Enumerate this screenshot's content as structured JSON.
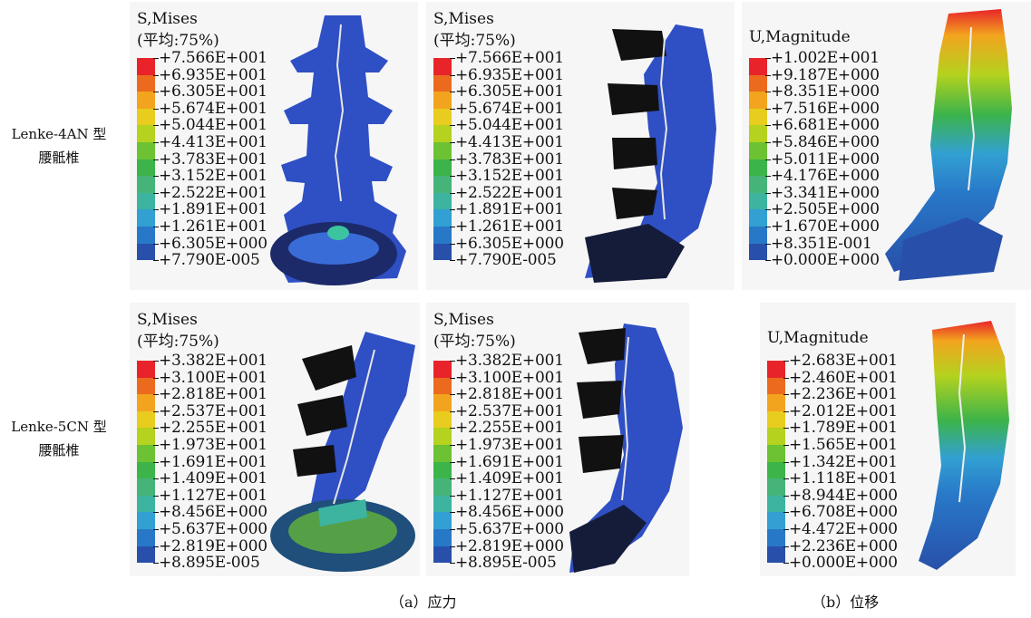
{
  "row_labels": [
    {
      "line1": "Lenke-4AN 型",
      "line2": "腰骶椎"
    },
    {
      "line1": "Lenke-5CN 型",
      "line2": "腰骶椎"
    }
  ],
  "panels": [
    {
      "title1": "S,Mises",
      "title2": "(平均:75%)",
      "ticks": [
        "+7.566E+001",
        "+6.935E+001",
        "+6.305E+001",
        "+5.674E+001",
        "+5.044E+001",
        "+4.413E+001",
        "+3.783E+001",
        "+3.152E+001",
        "+2.522E+001",
        "+1.891E+001",
        "+1.261E+001",
        "+6.305E+000",
        "+7.790E-005"
      ]
    },
    {
      "title1": "S,Mises",
      "title2": "(平均:75%)",
      "ticks": [
        "+7.566E+001",
        "+6.935E+001",
        "+6.305E+001",
        "+5.674E+001",
        "+5.044E+001",
        "+4.413E+001",
        "+3.783E+001",
        "+3.152E+001",
        "+2.522E+001",
        "+1.891E+001",
        "+1.261E+001",
        "+6.305E+000",
        "+7.790E-005"
      ]
    },
    {
      "title1": "U,Magnitude",
      "title2": "",
      "ticks": [
        "+1.002E+001",
        "+9.187E+000",
        "+8.351E+000",
        "+7.516E+000",
        "+6.681E+000",
        "+5.846E+000",
        "+5.011E+000",
        "+4.176E+000",
        "+3.341E+000",
        "+2.505E+000",
        "+1.670E+000",
        "+8.351E-001",
        "+0.000E+000"
      ]
    },
    {
      "title1": "S,Mises",
      "title2": "(平均:75%)",
      "ticks": [
        "+3.382E+001",
        "+3.100E+001",
        "+2.818E+001",
        "+2.537E+001",
        "+2.255E+001",
        "+1.973E+001",
        "+1.691E+001",
        "+1.409E+001",
        "+1.127E+001",
        "+8.456E+000",
        "+5.637E+000",
        "+2.819E+000",
        "+8.895E-005"
      ]
    },
    {
      "title1": "S,Mises",
      "title2": "(平均:75%)",
      "ticks": [
        "+3.382E+001",
        "+3.100E+001",
        "+2.818E+001",
        "+2.537E+001",
        "+2.255E+001",
        "+1.973E+001",
        "+1.691E+001",
        "+1.409E+001",
        "+1.127E+001",
        "+8.456E+000",
        "+5.637E+000",
        "+2.819E+000",
        "+8.895E-005"
      ]
    },
    {
      "title1": "U,Magnitude",
      "title2": "",
      "ticks": [
        "+2.683E+001",
        "+2.460E+001",
        "+2.236E+001",
        "+2.012E+001",
        "+1.789E+001",
        "+1.565E+001",
        "+1.342E+001",
        "+1.118E+001",
        "+8.944E+000",
        "+6.708E+000",
        "+4.472E+000",
        "+2.236E+000",
        "+0.000E+000"
      ]
    }
  ],
  "legend_colors": [
    "#e8242a",
    "#ec6a1e",
    "#f2a41e",
    "#e8cc1e",
    "#b4d21e",
    "#6cc232",
    "#3cb44a",
    "#46b478",
    "#3cb4a0",
    "#32a0d2",
    "#2878c8",
    "#2850aa",
    "#1e3c96"
  ],
  "captions": {
    "a": "（a）应力",
    "b": "（b）位移"
  }
}
